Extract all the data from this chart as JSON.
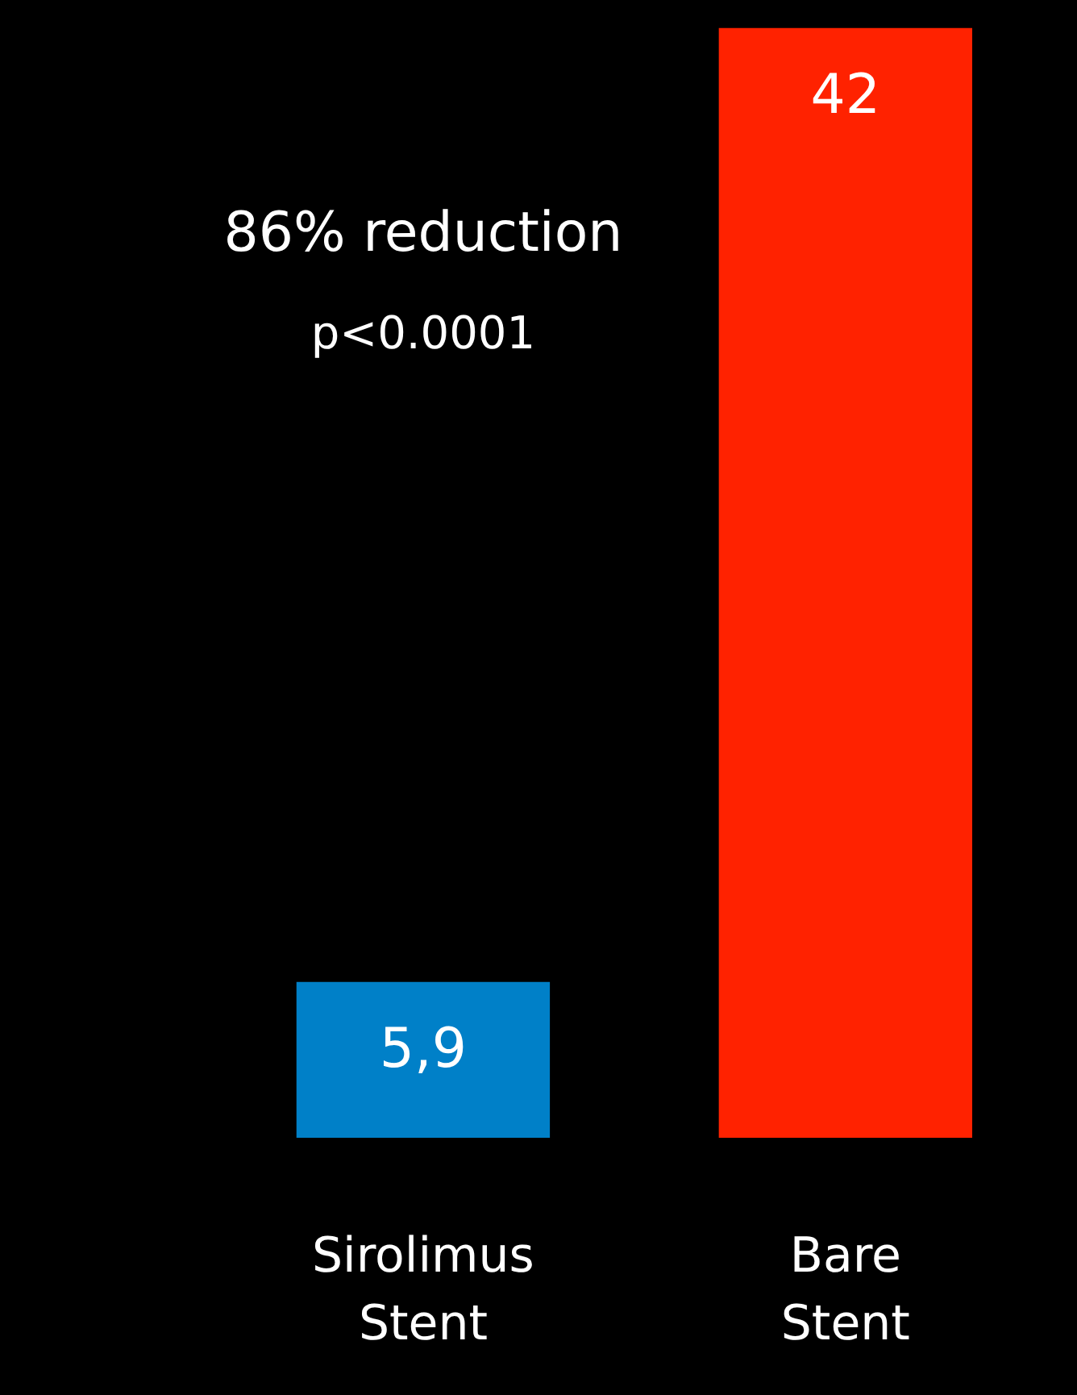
{
  "chart_data": {
    "type": "bar",
    "categories": [
      "Sirolimus Stent",
      "Bare Stent"
    ],
    "values": [
      5.9,
      42
    ],
    "colors": [
      "#0080c8",
      "#ff2200"
    ],
    "value_labels": [
      "5,9",
      "42"
    ],
    "annotations": [
      "86% reduction",
      "p<0.0001"
    ]
  }
}
